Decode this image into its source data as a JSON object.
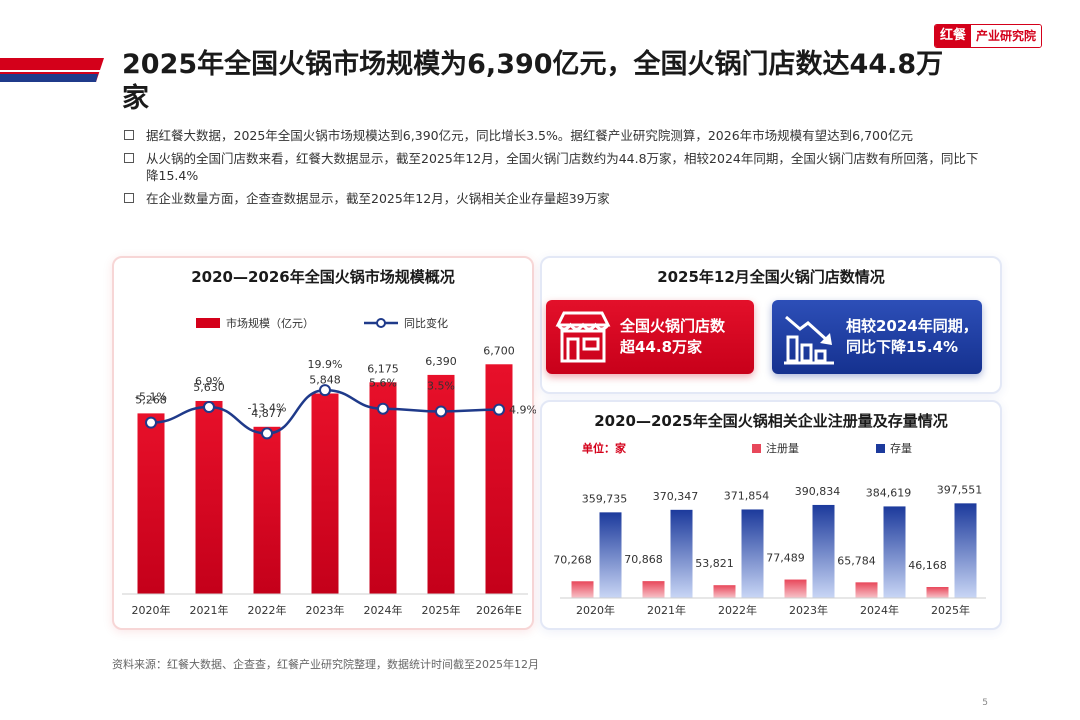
{
  "title": "2025年全国火锅市场规模为6,390亿元，全国火锅门店数达44.8万家",
  "brand": {
    "red": "红餐",
    "text": "产业研究院"
  },
  "bullets": [
    "据红餐大数据，2025年全国火锅市场规模达到6,390亿元，同比增长3.5%。据红餐产业研究院测算，2026年市场规模有望达到6,700亿元",
    "从火锅的全国门店数来看，红餐大数据显示，截至2025年12月，全国火锅门店数约为44.8万家，相较2024年同期，全国火锅门店数有所回落，同比下降15.4%",
    "在企业数量方面，企查查数据显示，截至2025年12月，火锅相关企业存量超39万家"
  ],
  "cards_title": "2025年12月全国火锅门店数情况",
  "card_red": {
    "line1": "全国火锅门店数",
    "line2": "超44.8万家",
    "icon": "storefront-icon"
  },
  "card_blue": {
    "line1": "相较2024年同期，",
    "line2": "同比下降15.4%",
    "icon": "declining-bar-chart-icon"
  },
  "colors": {
    "red": "#d4001a",
    "blue": "#1f3d9e",
    "navy": "#1f3a8a"
  },
  "footer": "资料来源：红餐大数据、企查查，红餐产业研究院整理，数据统计时间截至2025年12月",
  "page_number": "5",
  "chart_data": [
    {
      "type": "bar",
      "title": "2020—2026年全国火锅市场规模概况",
      "categories": [
        "2020年",
        "2021年",
        "2022年",
        "2023年",
        "2024年",
        "2025年",
        "2026年E"
      ],
      "series": [
        {
          "name": "市场规模（亿元）",
          "type": "bar",
          "values": [
            5268,
            5630,
            4877,
            5848,
            6175,
            6390,
            6700
          ],
          "labels": [
            "5,268",
            "5,630",
            "4,877",
            "5,848",
            "6,175",
            "6,390",
            "6,700"
          ]
        },
        {
          "name": "同比变化",
          "type": "line",
          "values": [
            -5.1,
            6.9,
            -13.4,
            19.9,
            5.6,
            3.5,
            4.9
          ],
          "labels": [
            "-5.1%",
            "6.9%",
            "-13.4%",
            "19.9%",
            "5.6%",
            "3.5%",
            "4.9%"
          ]
        }
      ],
      "ylim": [
        0,
        7000
      ],
      "grid": false,
      "legend": "top-center"
    },
    {
      "type": "bar",
      "title": "2020—2025年全国火锅相关企业注册量及存量情况",
      "unit_label": "单位：家",
      "categories": [
        "2020年",
        "2021年",
        "2022年",
        "2023年",
        "2024年",
        "2025年"
      ],
      "series": [
        {
          "name": "注册量",
          "values": [
            70268,
            70868,
            53821,
            77489,
            65784,
            46168
          ],
          "labels": [
            "70,268",
            "70,868",
            "53,821",
            "77,489",
            "65,784",
            "46,168"
          ]
        },
        {
          "name": "存量",
          "values": [
            359735,
            370347,
            371854,
            390834,
            384619,
            397551
          ],
          "labels": [
            "359,735",
            "370,347",
            "371,854",
            "390,834",
            "384,619",
            "397,551"
          ]
        }
      ],
      "ylim": [
        0,
        420000
      ],
      "grid": false,
      "legend": "top-left"
    }
  ]
}
